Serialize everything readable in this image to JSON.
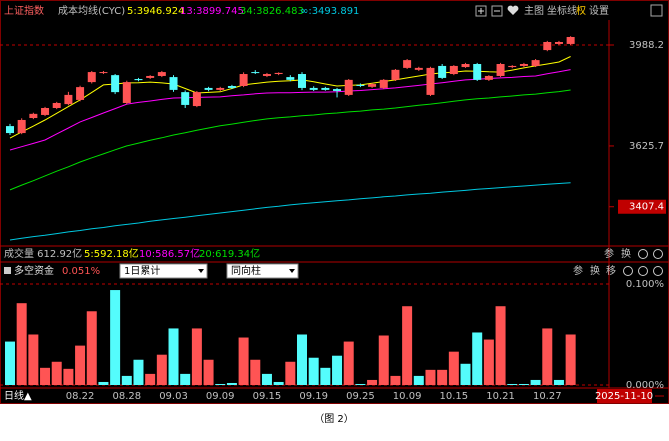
{
  "chart_data": [
    {
      "type": "candlestick",
      "title": "上证指数",
      "subtitle": "成本均线(CYC)",
      "categories": [
        null,
        null,
        null,
        null,
        null,
        null,
        "08.22",
        null,
        null,
        null,
        "08.28",
        null,
        null,
        null,
        "09.03",
        null,
        null,
        null,
        "09.09",
        null,
        null,
        null,
        "09.15",
        null,
        null,
        null,
        "09.19",
        null,
        null,
        null,
        "09.25",
        null,
        null,
        null,
        "10.09",
        null,
        null,
        null,
        "10.15",
        null,
        null,
        null,
        "10.21",
        null,
        null,
        null,
        "10.27",
        null,
        null
      ],
      "open": [
        3697,
        3672,
        3726,
        3737,
        3762,
        3776,
        3791,
        3855,
        3888,
        3880,
        3780,
        3866,
        3870,
        3877,
        3873,
        3819,
        3769,
        3834,
        3827,
        3841,
        3841,
        3891,
        3877,
        3884,
        3873,
        3884,
        3834,
        3834,
        3830,
        3809,
        3845,
        3838,
        3834,
        3863,
        3906,
        3899,
        3809,
        3913,
        3884,
        3909,
        3920,
        3863,
        3877,
        3909,
        3913,
        3913,
        3970,
        3992,
        3992
      ],
      "high": [
        3705,
        3725,
        3745,
        3766,
        3784,
        3820,
        3842,
        3895,
        3895,
        3884,
        3860,
        3870,
        3880,
        3895,
        3880,
        3825,
        3823,
        3838,
        3838,
        3845,
        3890,
        3898,
        3888,
        3890,
        3880,
        3891,
        3840,
        3838,
        3834,
        3866,
        3850,
        3852,
        3866,
        3902,
        3938,
        3910,
        3910,
        3920,
        3916,
        3924,
        3924,
        3880,
        3924,
        3916,
        3924,
        3938,
        4003,
        4003,
        4020
      ],
      "low": [
        3665,
        3668,
        3722,
        3733,
        3758,
        3772,
        3786,
        3850,
        3884,
        3812,
        3775,
        3858,
        3866,
        3873,
        3820,
        3762,
        3765,
        3822,
        3823,
        3830,
        3837,
        3884,
        3873,
        3880,
        3858,
        3826,
        3823,
        3824,
        3800,
        3805,
        3837,
        3834,
        3830,
        3859,
        3902,
        3895,
        3805,
        3866,
        3880,
        3906,
        3859,
        3859,
        3873,
        3905,
        3909,
        3909,
        3966,
        3988,
        3988
      ],
      "close": [
        3672,
        3719,
        3741,
        3762,
        3780,
        3809,
        3837,
        3891,
        3891,
        3819,
        3855,
        3862,
        3877,
        3891,
        3827,
        3773,
        3819,
        3827,
        3834,
        3834,
        3884,
        3888,
        3884,
        3888,
        3863,
        3834,
        3827,
        3827,
        3823,
        3863,
        3841,
        3848,
        3863,
        3899,
        3934,
        3906,
        3906,
        3870,
        3913,
        3920,
        3863,
        3877,
        3920,
        3913,
        3920,
        3934,
        3999,
        3999,
        4017
      ],
      "up_color": "#ff5454",
      "down_color": "#54fcfc",
      "series": [
        {
          "name": "5:3946.924",
          "color": "#ffff00",
          "values": [
            3654,
            3676,
            3697,
            3719,
            3743,
            3767,
            3791,
            3818,
            3845,
            3848,
            3852,
            3853,
            3855,
            3852,
            3848,
            3832,
            3816,
            3818,
            3820,
            3832,
            3845,
            3850,
            3855,
            3858,
            3860,
            3863,
            3856,
            3848,
            3841,
            3843,
            3845,
            3851,
            3857,
            3863,
            3870,
            3877,
            3884,
            3888,
            3891,
            3895,
            3894,
            3892,
            3891,
            3898,
            3906,
            3913,
            3920,
            3927,
            3946.924
          ]
        },
        {
          "name": "13:3899.745",
          "color": "#ff00ff",
          "values": [
            3611,
            3623,
            3635,
            3647,
            3669,
            3690,
            3712,
            3728,
            3744,
            3760,
            3776,
            3782,
            3787,
            3793,
            3798,
            3799,
            3800,
            3801,
            3802,
            3806,
            3809,
            3813,
            3816,
            3817,
            3817,
            3818,
            3819,
            3819,
            3820,
            3823,
            3825,
            3828,
            3831,
            3834,
            3839,
            3843,
            3848,
            3853,
            3858,
            3863,
            3865,
            3868,
            3870,
            3872,
            3875,
            3877,
            3885,
            3892,
            3899.745
          ]
        },
        {
          "name": "34:3826.483",
          "color": "#00e000",
          "values": [
            3468,
            3485,
            3501,
            3518,
            3535,
            3551,
            3568,
            3583,
            3597,
            3612,
            3626,
            3636,
            3646,
            3655,
            3665,
            3673,
            3682,
            3690,
            3698,
            3704,
            3711,
            3717,
            3723,
            3727,
            3730,
            3734,
            3737,
            3741,
            3744,
            3748,
            3751,
            3755,
            3758,
            3762,
            3767,
            3772,
            3776,
            3781,
            3786,
            3791,
            3795,
            3798,
            3802,
            3805,
            3809,
            3812,
            3817,
            3821,
            3826.483
          ]
        },
        {
          "name": "∞:3493.891",
          "color": "#00c8e0",
          "values": [
            3288,
            3294,
            3300,
            3305,
            3311,
            3317,
            3322,
            3328,
            3333,
            3339,
            3344,
            3349,
            3355,
            3360,
            3365,
            3370,
            3375,
            3380,
            3385,
            3390,
            3395,
            3400,
            3405,
            3409,
            3414,
            3418,
            3422,
            3425,
            3429,
            3432,
            3436,
            3439,
            3443,
            3446,
            3450,
            3453,
            3456,
            3460,
            3463,
            3466,
            3470,
            3473,
            3476,
            3479,
            3482,
            3485,
            3488,
            3491,
            3493.891
          ]
        }
      ],
      "ylim": [
        3270,
        4078
      ],
      "yticks": [
        3988.2,
        3625.7,
        3407.4
      ]
    },
    {
      "type": "bar",
      "title": "多空资金",
      "subtitle": "0.051%",
      "values": [
        0.043,
        0.081,
        0.05,
        0.017,
        0.023,
        0.016,
        0.039,
        0.073,
        0.003,
        0.094,
        0.009,
        0.025,
        0.011,
        0.03,
        0.056,
        0.011,
        0.056,
        0.025,
        0.001,
        0.002,
        0.047,
        0.025,
        0.011,
        0.003,
        0.023,
        0.05,
        0.027,
        0.017,
        0.029,
        0.043,
        0.001,
        0.005,
        0.049,
        0.009,
        0.078,
        0.009,
        0.015,
        0.015,
        0.033,
        0.021,
        0.052,
        0.045,
        0.078,
        0.001,
        0.001,
        0.005,
        0.056,
        0.005,
        0.05
      ],
      "colors": [
        "#54fcfc",
        "#ff5454",
        "#ff5454",
        "#ff5454",
        "#ff5454",
        "#ff5454",
        "#ff5454",
        "#ff5454",
        "#54fcfc",
        "#54fcfc",
        "#54fcfc",
        "#54fcfc",
        "#ff5454",
        "#ff5454",
        "#54fcfc",
        "#54fcfc",
        "#ff5454",
        "#ff5454",
        "#54fcfc",
        "#54fcfc",
        "#ff5454",
        "#ff5454",
        "#54fcfc",
        "#54fcfc",
        "#ff5454",
        "#54fcfc",
        "#54fcfc",
        "#54fcfc",
        "#54fcfc",
        "#ff5454",
        "#54fcfc",
        "#ff5454",
        "#ff5454",
        "#ff5454",
        "#ff5454",
        "#54fcfc",
        "#ff5454",
        "#ff5454",
        "#ff5454",
        "#54fcfc",
        "#54fcfc",
        "#ff5454",
        "#ff5454",
        "#54fcfc",
        "#54fcfc",
        "#54fcfc",
        "#ff5454",
        "#54fcfc",
        "#ff5454"
      ],
      "ylim": [
        0,
        0.1
      ],
      "yticks": [
        {
          "value": 0.1,
          "label": "0.100%"
        },
        {
          "value": 0,
          "label": "0.000%"
        }
      ]
    }
  ],
  "toolbar": [
    "主图",
    "坐标线",
    "权",
    "设置"
  ],
  "volume": {
    "items": [
      "成交量 612.92亿",
      "5:592.18亿",
      "10:586.57亿",
      "20:619.34亿"
    ],
    "buttons": [
      "参",
      "换"
    ]
  },
  "indicator": {
    "dropdowns": [
      "1日累计",
      "同向柱"
    ],
    "buttons": [
      "参",
      "换",
      "移"
    ]
  },
  "axis_bar": {
    "period": "日线▲",
    "date": "2025-11-10"
  },
  "caption": "（图 2）"
}
